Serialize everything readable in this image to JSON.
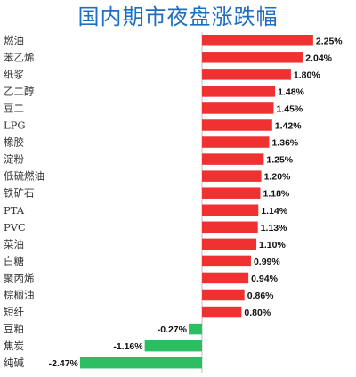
{
  "chart_data": {
    "type": "bar",
    "orientation": "horizontal",
    "title": "国内期市夜盘涨跌幅",
    "xlabel": "",
    "ylabel": "",
    "categories": [
      "燃油",
      "苯乙烯",
      "纸浆",
      "乙二醇",
      "豆二",
      "LPG",
      "橡胶",
      "淀粉",
      "低硫燃油",
      "铁矿石",
      "PTA",
      "PVC",
      "菜油",
      "白糖",
      "聚丙烯",
      "棕榈油",
      "短纤",
      "豆粕",
      "焦炭",
      "纯碱"
    ],
    "values": [
      2.25,
      2.04,
      1.8,
      1.48,
      1.45,
      1.42,
      1.36,
      1.25,
      1.2,
      1.18,
      1.14,
      1.13,
      1.1,
      0.99,
      0.94,
      0.86,
      0.8,
      -0.27,
      -1.16,
      -2.47
    ],
    "labels": [
      "2.25%",
      "2.04%",
      "1.80%",
      "1.48%",
      "1.45%",
      "1.42%",
      "1.36%",
      "1.25%",
      "1.20%",
      "1.18%",
      "1.14%",
      "1.13%",
      "1.10%",
      "0.99%",
      "0.94%",
      "0.86%",
      "0.80%",
      "-0.27%",
      "-1.16%",
      "-2.47%"
    ],
    "colors": {
      "positive": "#f03131",
      "negative": "#2dbe64",
      "axis": "#bfbfbf",
      "title": "#1f6fc0"
    },
    "grid": false,
    "legend": "none"
  }
}
